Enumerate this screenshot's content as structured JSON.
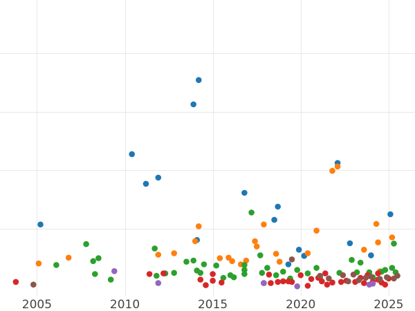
{
  "chart_data": {
    "type": "scatter",
    "title": "",
    "xlabel": "",
    "ylabel": "",
    "xlim": [
      2002.9,
      2026.5
    ],
    "ylim": [
      0,
      100
    ],
    "grid": true,
    "legend": "none",
    "x_ticks": [
      {
        "value": 2005,
        "label": "2005"
      },
      {
        "value": 2010,
        "label": "2010"
      },
      {
        "value": 2015,
        "label": "2015"
      },
      {
        "value": 2020,
        "label": "2020"
      },
      {
        "value": 2025,
        "label": "2025"
      }
    ],
    "y_grid": [
      20,
      40,
      60,
      80,
      100
    ],
    "series": [
      {
        "color": "#1f77b4",
        "points": [
          [
            2005.2,
            21.5
          ],
          [
            2010.4,
            45.5
          ],
          [
            2011.2,
            35.4
          ],
          [
            2011.9,
            37.5
          ],
          [
            2013.9,
            62.5
          ],
          [
            2014.1,
            16.2
          ],
          [
            2014.2,
            70.8
          ],
          [
            2016.8,
            32.3
          ],
          [
            2018.5,
            23.1
          ],
          [
            2018.7,
            27.6
          ],
          [
            2019.3,
            7.9
          ],
          [
            2019.9,
            12.9
          ],
          [
            2020.2,
            10.8
          ],
          [
            2022.1,
            42.5
          ],
          [
            2022.8,
            15.1
          ],
          [
            2024.0,
            11.0
          ],
          [
            2025.1,
            25.0
          ]
        ]
      },
      {
        "color": "#ff7f0e",
        "points": [
          [
            2005.1,
            8.2
          ],
          [
            2006.8,
            10.2
          ],
          [
            2011.9,
            11.2
          ],
          [
            2012.8,
            11.7
          ],
          [
            2014.0,
            15.8
          ],
          [
            2014.2,
            20.9
          ],
          [
            2015.4,
            10.0
          ],
          [
            2015.9,
            10.2
          ],
          [
            2016.1,
            9.0
          ],
          [
            2016.6,
            7.9
          ],
          [
            2016.9,
            9.2
          ],
          [
            2017.4,
            15.8
          ],
          [
            2017.5,
            14.0
          ],
          [
            2017.9,
            21.5
          ],
          [
            2018.6,
            11.5
          ],
          [
            2018.8,
            8.8
          ],
          [
            2020.4,
            11.7
          ],
          [
            2020.9,
            19.4
          ],
          [
            2021.8,
            39.8
          ],
          [
            2022.1,
            41.3
          ],
          [
            2023.6,
            12.9
          ],
          [
            2024.3,
            21.7
          ],
          [
            2024.4,
            15.4
          ],
          [
            2024.5,
            5.5
          ],
          [
            2025.2,
            17.1
          ]
        ]
      },
      {
        "color": "#2ca02c",
        "points": [
          [
            2006.1,
            7.7
          ],
          [
            2007.8,
            14.8
          ],
          [
            2008.2,
            9.0
          ],
          [
            2008.3,
            4.6
          ],
          [
            2008.5,
            10.0
          ],
          [
            2009.2,
            2.7
          ],
          [
            2011.7,
            13.3
          ],
          [
            2011.8,
            4.0
          ],
          [
            2012.3,
            4.8
          ],
          [
            2012.8,
            5.0
          ],
          [
            2013.5,
            8.8
          ],
          [
            2013.9,
            9.2
          ],
          [
            2014.1,
            5.8
          ],
          [
            2014.3,
            5.0
          ],
          [
            2014.5,
            7.9
          ],
          [
            2015.2,
            7.5
          ],
          [
            2015.6,
            3.3
          ],
          [
            2016.0,
            4.2
          ],
          [
            2016.2,
            3.5
          ],
          [
            2016.8,
            7.7
          ],
          [
            2016.8,
            6.0
          ],
          [
            2016.8,
            4.6
          ],
          [
            2017.2,
            25.6
          ],
          [
            2017.7,
            11.0
          ],
          [
            2017.8,
            5.0
          ],
          [
            2018.1,
            6.7
          ],
          [
            2018.6,
            4.2
          ],
          [
            2019.0,
            5.4
          ],
          [
            2019.4,
            3.1
          ],
          [
            2019.8,
            6.0
          ],
          [
            2020.4,
            4.8
          ],
          [
            2020.9,
            6.7
          ],
          [
            2021.1,
            3.3
          ],
          [
            2022.2,
            5.0
          ],
          [
            2022.9,
            9.4
          ],
          [
            2023.2,
            5.2
          ],
          [
            2023.4,
            8.5
          ],
          [
            2023.9,
            5.2
          ],
          [
            2024.1,
            3.5
          ],
          [
            2024.6,
            5.4
          ],
          [
            2024.8,
            6.0
          ],
          [
            2025.2,
            6.7
          ],
          [
            2025.3,
            15.0
          ],
          [
            2025.4,
            5.2
          ]
        ]
      },
      {
        "color": "#d62728",
        "points": [
          [
            2003.8,
            1.9
          ],
          [
            2011.4,
            4.6
          ],
          [
            2012.2,
            4.8
          ],
          [
            2014.3,
            2.7
          ],
          [
            2014.6,
            0.8
          ],
          [
            2015.0,
            2.3
          ],
          [
            2015.0,
            4.6
          ],
          [
            2015.5,
            1.7
          ],
          [
            2017.9,
            1.5
          ],
          [
            2018.2,
            4.4
          ],
          [
            2018.3,
            1.5
          ],
          [
            2018.7,
            1.9
          ],
          [
            2019.0,
            2.1
          ],
          [
            2019.3,
            2.1
          ],
          [
            2019.5,
            1.9
          ],
          [
            2020.0,
            4.2
          ],
          [
            2020.4,
            0.6
          ],
          [
            2020.6,
            2.9
          ],
          [
            2021.0,
            3.3
          ],
          [
            2021.2,
            2.1
          ],
          [
            2021.4,
            4.8
          ],
          [
            2021.5,
            1.0
          ],
          [
            2021.8,
            1.7
          ],
          [
            2022.3,
            1.9
          ],
          [
            2022.6,
            2.3
          ],
          [
            2023.1,
            1.9
          ],
          [
            2023.4,
            3.3
          ],
          [
            2023.6,
            1.5
          ],
          [
            2023.8,
            4.2
          ],
          [
            2024.1,
            1.9
          ],
          [
            2024.4,
            2.7
          ],
          [
            2024.4,
            4.8
          ],
          [
            2024.6,
            1.7
          ],
          [
            2024.8,
            1.0
          ],
          [
            2025.0,
            3.1
          ]
        ]
      },
      {
        "color": "#9467bd",
        "points": [
          [
            2009.4,
            5.6
          ],
          [
            2011.9,
            1.5
          ],
          [
            2017.9,
            1.5
          ],
          [
            2019.8,
            0.4
          ],
          [
            2023.9,
            1.0
          ],
          [
            2024.1,
            1.3
          ]
        ]
      },
      {
        "color": "#8c564b",
        "points": [
          [
            2004.8,
            1.0
          ],
          [
            2019.5,
            9.6
          ],
          [
            2021.1,
            4.0
          ],
          [
            2021.6,
            3.1
          ],
          [
            2022.4,
            4.2
          ],
          [
            2022.7,
            2.1
          ],
          [
            2023.0,
            4.4
          ],
          [
            2023.3,
            2.5
          ],
          [
            2023.7,
            3.3
          ],
          [
            2024.0,
            3.7
          ],
          [
            2024.5,
            2.9
          ],
          [
            2024.9,
            3.5
          ],
          [
            2025.3,
            3.1
          ],
          [
            2025.5,
            4.0
          ]
        ]
      }
    ]
  }
}
